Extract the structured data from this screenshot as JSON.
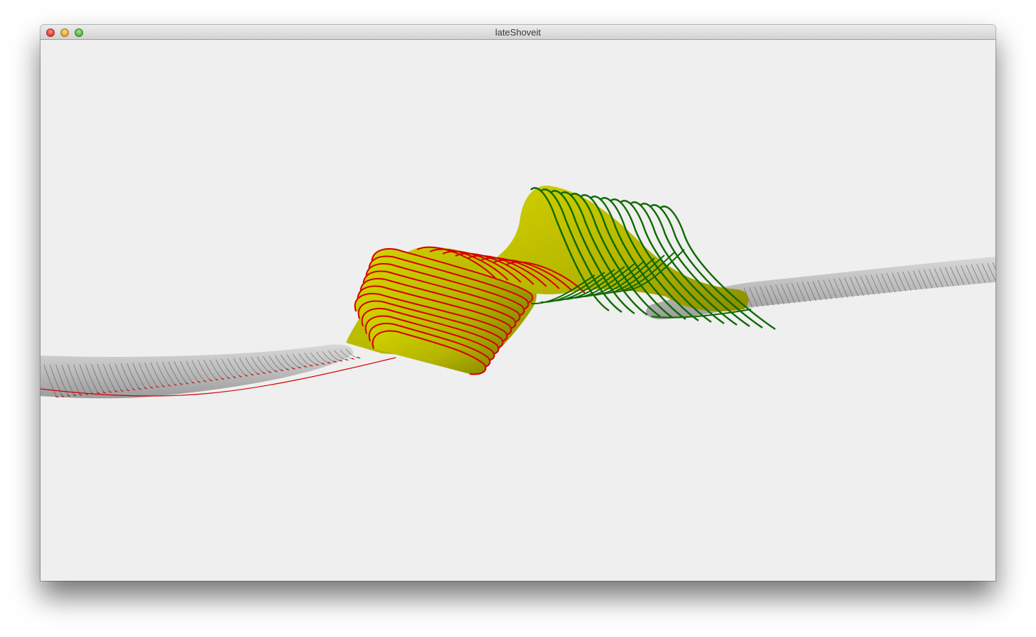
{
  "window": {
    "title": "lateShoveit",
    "controls": {
      "close": "close-icon",
      "minimize": "minimize-icon",
      "maximize": "maximize-icon"
    }
  },
  "scene": {
    "background": "#efefef",
    "colors": {
      "tube_gray": "#bdbdbd",
      "tube_gray_dark": "#8d8d8d",
      "edge_red": "#d40000",
      "edge_green": "#0f6a00",
      "surface_yellow": "#c2c200",
      "surface_yellow_dark": "#8f8f00"
    }
  }
}
